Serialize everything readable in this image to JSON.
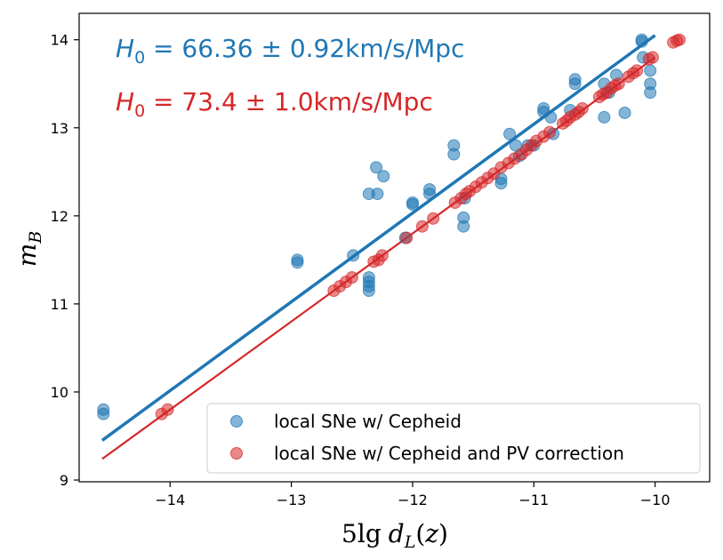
{
  "chart_data": {
    "type": "scatter",
    "xlabel": "5lg d_L(z)",
    "ylabel": "m_B",
    "xlim": [
      -14.75,
      -9.55
    ],
    "ylim": [
      8.98,
      14.3
    ],
    "xticks": [
      -14,
      -13,
      -12,
      -11,
      -10
    ],
    "yticks": [
      9,
      10,
      11,
      12,
      13,
      14
    ],
    "xtick_labels": [
      "−14",
      "−13",
      "−12",
      "−11",
      "−10"
    ],
    "ytick_labels": [
      "9",
      "10",
      "11",
      "12",
      "13",
      "14"
    ],
    "legend_position": "lower-right",
    "annotations": [
      {
        "text": "H_0 = 66.36 ± 0.92km/s/Mpc",
        "math": "H",
        "sub": "0",
        "rest": " = 66.36 ± 0.92km/s/Mpc",
        "color": "#1f77b4"
      },
      {
        "text": "H_0 = 73.4 ± 1.0km/s/Mpc",
        "math": "H",
        "sub": "0",
        "rest": " = 73.4 ± 1.0km/s/Mpc",
        "color": "#d62728"
      }
    ],
    "fits": [
      {
        "name": "fit Cepheid",
        "color": "#1f77b4",
        "x": [
          -14.56,
          -10.0
        ],
        "y": [
          9.45,
          14.05
        ]
      },
      {
        "name": "fit PV corrected",
        "color": "#d62728",
        "x": [
          -14.56,
          -10.0
        ],
        "y": [
          9.24,
          13.8
        ]
      }
    ],
    "series": [
      {
        "name": "local SNe w/ Cepheid",
        "color": "#1f77b4",
        "points": [
          [
            -14.55,
            9.8
          ],
          [
            -14.55,
            9.75
          ],
          [
            -12.95,
            11.5
          ],
          [
            -12.95,
            11.47
          ],
          [
            -12.49,
            11.55
          ],
          [
            -12.36,
            11.3
          ],
          [
            -12.36,
            11.25
          ],
          [
            -12.36,
            11.2
          ],
          [
            -12.36,
            11.15
          ],
          [
            -12.36,
            12.25
          ],
          [
            -12.3,
            12.55
          ],
          [
            -12.29,
            12.25
          ],
          [
            -12.24,
            12.45
          ],
          [
            -12.06,
            11.75
          ],
          [
            -12.0,
            12.13
          ],
          [
            -12.0,
            12.15
          ],
          [
            -11.86,
            12.3
          ],
          [
            -11.86,
            12.25
          ],
          [
            -11.66,
            12.8
          ],
          [
            -11.66,
            12.7
          ],
          [
            -11.58,
            11.98
          ],
          [
            -11.58,
            11.88
          ],
          [
            -11.57,
            12.2
          ],
          [
            -11.27,
            12.42
          ],
          [
            -11.27,
            12.37
          ],
          [
            -11.2,
            12.93
          ],
          [
            -11.15,
            12.8
          ],
          [
            -11.12,
            12.68
          ],
          [
            -11.05,
            12.8
          ],
          [
            -11.0,
            12.8
          ],
          [
            -10.92,
            13.22
          ],
          [
            -10.92,
            13.18
          ],
          [
            -10.86,
            13.12
          ],
          [
            -10.84,
            12.93
          ],
          [
            -10.7,
            13.2
          ],
          [
            -10.66,
            13.55
          ],
          [
            -10.66,
            13.5
          ],
          [
            -10.42,
            13.12
          ],
          [
            -10.42,
            13.5
          ],
          [
            -10.38,
            13.4
          ],
          [
            -10.32,
            13.6
          ],
          [
            -10.25,
            13.17
          ],
          [
            -10.11,
            14.0
          ],
          [
            -10.11,
            13.98
          ],
          [
            -10.1,
            13.8
          ],
          [
            -10.04,
            13.65
          ],
          [
            -10.04,
            13.5
          ],
          [
            -10.04,
            13.4
          ]
        ]
      },
      {
        "name": "local SNe w/ Cepheid and PV correction",
        "color": "#d62728",
        "points": [
          [
            -14.07,
            9.75
          ],
          [
            -14.02,
            9.8
          ],
          [
            -12.65,
            11.15
          ],
          [
            -12.6,
            11.2
          ],
          [
            -12.55,
            11.25
          ],
          [
            -12.5,
            11.3
          ],
          [
            -12.32,
            11.48
          ],
          [
            -12.28,
            11.5
          ],
          [
            -12.25,
            11.55
          ],
          [
            -12.05,
            11.75
          ],
          [
            -11.92,
            11.88
          ],
          [
            -11.83,
            11.97
          ],
          [
            -11.65,
            12.15
          ],
          [
            -11.6,
            12.2
          ],
          [
            -11.56,
            12.25
          ],
          [
            -11.53,
            12.28
          ],
          [
            -11.48,
            12.33
          ],
          [
            -11.43,
            12.38
          ],
          [
            -11.38,
            12.43
          ],
          [
            -11.33,
            12.48
          ],
          [
            -11.27,
            12.55
          ],
          [
            -11.21,
            12.6
          ],
          [
            -11.16,
            12.65
          ],
          [
            -11.1,
            12.7
          ],
          [
            -11.06,
            12.75
          ],
          [
            -11.02,
            12.8
          ],
          [
            -10.98,
            12.85
          ],
          [
            -10.92,
            12.9
          ],
          [
            -10.87,
            12.95
          ],
          [
            -10.76,
            13.05
          ],
          [
            -10.73,
            13.08
          ],
          [
            -10.7,
            13.12
          ],
          [
            -10.66,
            13.15
          ],
          [
            -10.63,
            13.18
          ],
          [
            -10.6,
            13.22
          ],
          [
            -10.46,
            13.35
          ],
          [
            -10.43,
            13.38
          ],
          [
            -10.4,
            13.4
          ],
          [
            -10.36,
            13.45
          ],
          [
            -10.33,
            13.48
          ],
          [
            -10.3,
            13.5
          ],
          [
            -10.22,
            13.58
          ],
          [
            -10.18,
            13.62
          ],
          [
            -10.15,
            13.65
          ],
          [
            -10.05,
            13.78
          ],
          [
            -10.02,
            13.8
          ],
          [
            -9.85,
            13.97
          ],
          [
            -9.82,
            13.99
          ],
          [
            -9.8,
            14.0
          ]
        ]
      }
    ]
  }
}
